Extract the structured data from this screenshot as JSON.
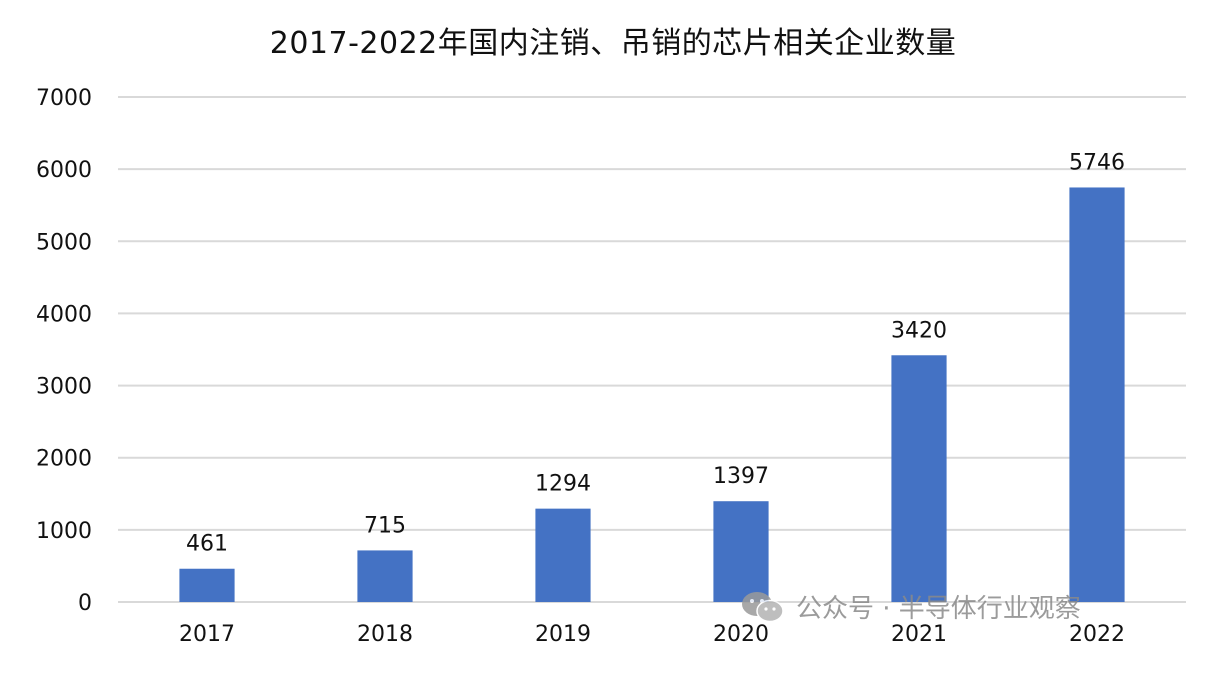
{
  "chart_data": {
    "type": "bar",
    "title": "2017-2022年国内注销、吊销的芯片相关企业数量",
    "categories": [
      "2017",
      "2018",
      "2019",
      "2020",
      "2021",
      "2022"
    ],
    "values": [
      461,
      715,
      1294,
      1397,
      3420,
      5746
    ],
    "ylim": [
      0,
      7000
    ],
    "yticks": [
      0,
      1000,
      2000,
      3000,
      4000,
      5000,
      6000,
      7000
    ],
    "grid": true,
    "legend": "none",
    "bar_color": "#4472C4",
    "gridline_color": "#d9d9d9"
  },
  "watermark": {
    "icon": "wechat-icon",
    "text": "公众号 · 半导体行业观察"
  }
}
